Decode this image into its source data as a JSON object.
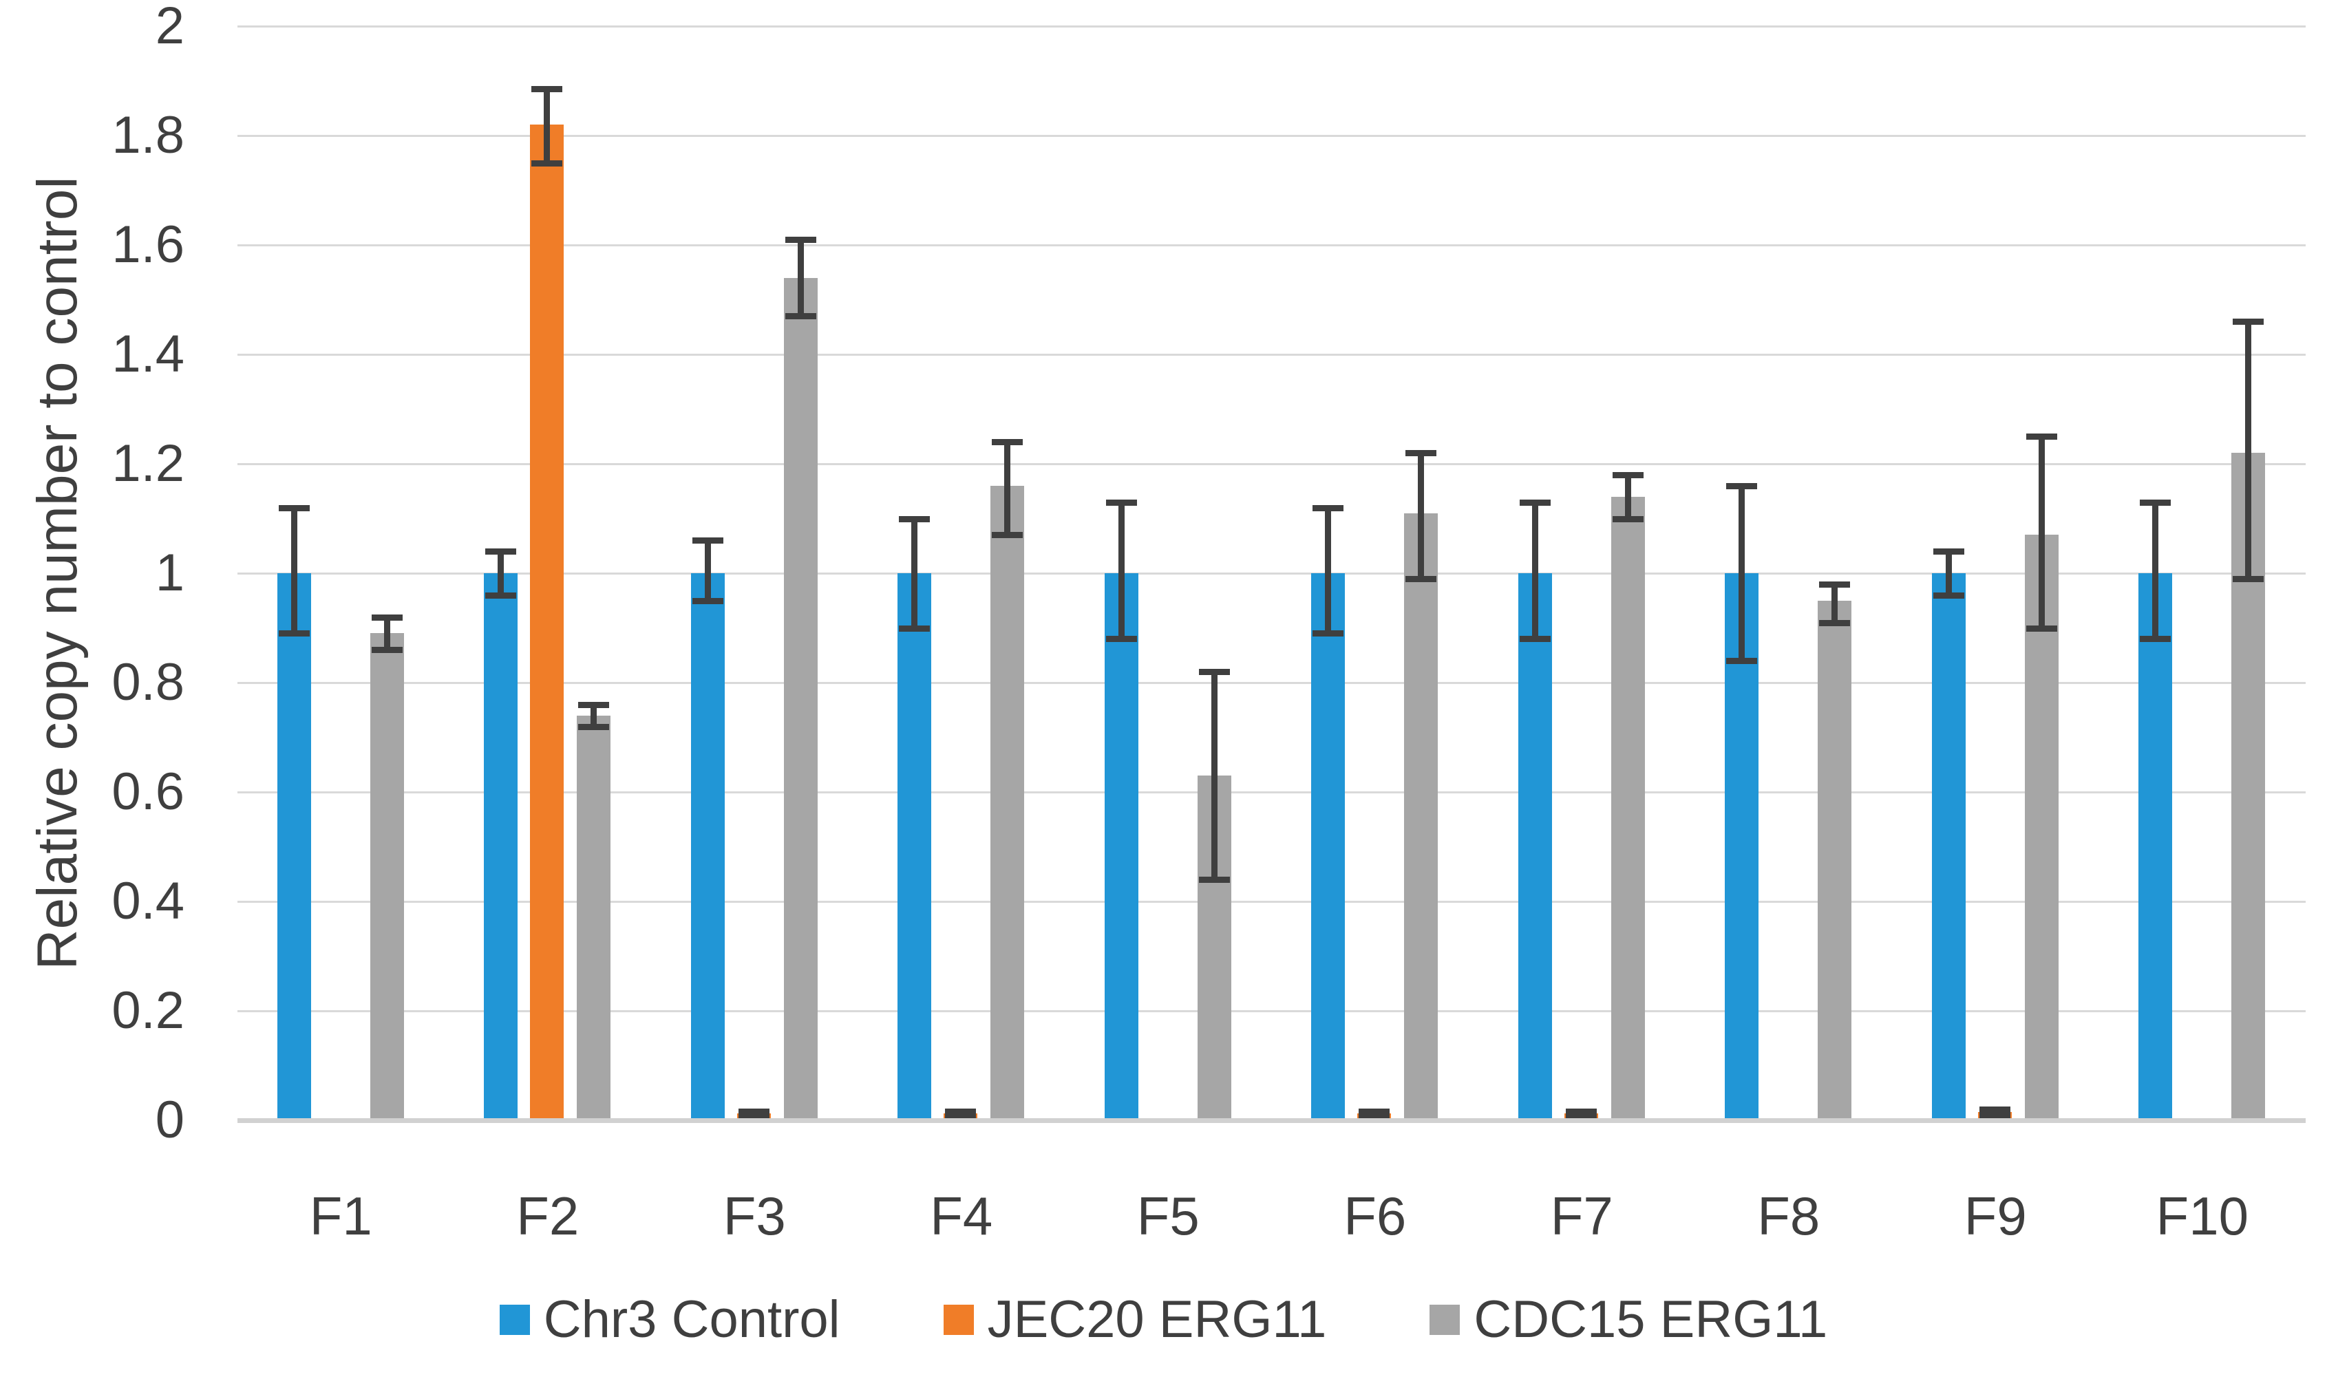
{
  "chart_data": {
    "type": "bar",
    "title": "",
    "xlabel": "",
    "ylabel": "Relative copy number to control",
    "categories": [
      "F1",
      "F2",
      "F3",
      "F4",
      "F5",
      "F6",
      "F7",
      "F8",
      "F9",
      "F10"
    ],
    "ylim": [
      0,
      2
    ],
    "yticks": [
      {
        "value": 0.0,
        "label": "0"
      },
      {
        "value": 0.2,
        "label": "0.2"
      },
      {
        "value": 0.4,
        "label": "0.4"
      },
      {
        "value": 0.6,
        "label": "0.6"
      },
      {
        "value": 0.8,
        "label": "0.8"
      },
      {
        "value": 1.0,
        "label": "1"
      },
      {
        "value": 1.2,
        "label": "1.2"
      },
      {
        "value": 1.4,
        "label": "1.4"
      },
      {
        "value": 1.6,
        "label": "1.6"
      },
      {
        "value": 1.8,
        "label": "1.8"
      },
      {
        "value": 2.0,
        "label": "2"
      }
    ],
    "grid": "horizontal",
    "legend_position": "bottom",
    "series": [
      {
        "name": "Chr3 Control",
        "color": "#2196D6",
        "values": [
          1,
          1,
          1,
          1,
          1,
          1,
          1,
          1,
          1,
          1
        ],
        "err_up": [
          0.12,
          0.04,
          0.06,
          0.1,
          0.13,
          0.12,
          0.13,
          0.16,
          0.04,
          0.13
        ],
        "err_down": [
          0.11,
          0.04,
          0.05,
          0.1,
          0.12,
          0.11,
          0.12,
          0.16,
          0.04,
          0.12
        ]
      },
      {
        "name": "JEC20 ERG11",
        "color": "#F07D28",
        "values": [
          null,
          1.82,
          0.012,
          0.012,
          null,
          0.012,
          0.012,
          null,
          0.015,
          null
        ],
        "err_up": [
          null,
          0.065,
          0.004,
          0.004,
          null,
          0.004,
          0.004,
          null,
          0.005,
          null
        ],
        "err_down": [
          null,
          0.07,
          0.004,
          0.004,
          null,
          0.004,
          0.004,
          null,
          0.005,
          null
        ]
      },
      {
        "name": "CDC15 ERG11",
        "color": "#A6A6A6",
        "values": [
          0.89,
          0.74,
          1.54,
          1.16,
          0.63,
          1.11,
          1.14,
          0.95,
          1.07,
          1.22
        ],
        "err_up": [
          0.03,
          0.02,
          0.07,
          0.08,
          0.19,
          0.11,
          0.04,
          0.03,
          0.18,
          0.24
        ],
        "err_down": [
          0.03,
          0.02,
          0.07,
          0.09,
          0.19,
          0.12,
          0.04,
          0.04,
          0.17,
          0.23
        ]
      }
    ],
    "colors": {
      "grid": "#D9D9D9",
      "axis": "#D1D1D1",
      "error_bar": "#3F3F3F",
      "text": "#3F3F3F"
    }
  }
}
